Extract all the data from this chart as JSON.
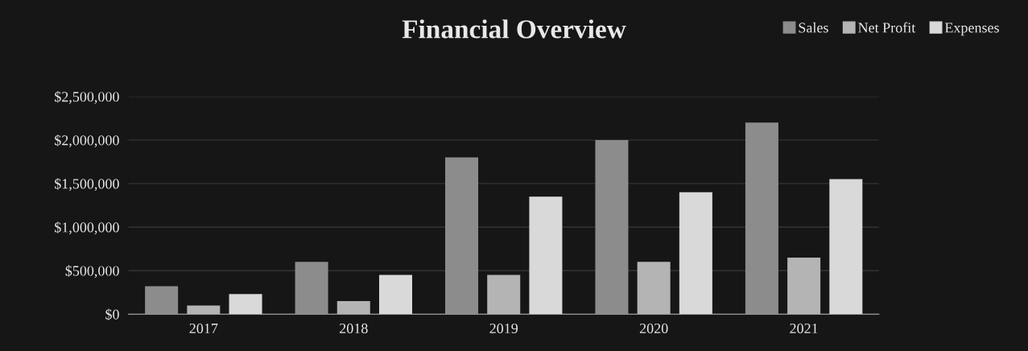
{
  "chart_data": {
    "type": "bar",
    "title": "Financial Overview",
    "categories": [
      "2017",
      "2018",
      "2019",
      "2020",
      "2021"
    ],
    "series": [
      {
        "name": "Sales",
        "color": "#8c8c8c",
        "values": [
          320000,
          600000,
          1800000,
          2000000,
          2200000
        ]
      },
      {
        "name": "Net Profit",
        "color": "#b4b4b4",
        "values": [
          100000,
          150000,
          450000,
          600000,
          650000
        ]
      },
      {
        "name": "Expenses",
        "color": "#d9d9d9",
        "values": [
          230000,
          450000,
          1350000,
          1400000,
          1550000
        ]
      }
    ],
    "ylim": [
      0,
      2500000
    ],
    "yticks": [
      {
        "value": 0,
        "label": "$0"
      },
      {
        "value": 500000,
        "label": "$500,000"
      },
      {
        "value": 1000000,
        "label": "$1,000,000"
      },
      {
        "value": 1500000,
        "label": "$1,500,000"
      },
      {
        "value": 2000000,
        "label": "$2,000,000"
      },
      {
        "value": 2500000,
        "label": "$2,500,000"
      }
    ],
    "grid": "y",
    "legend": "top right"
  }
}
